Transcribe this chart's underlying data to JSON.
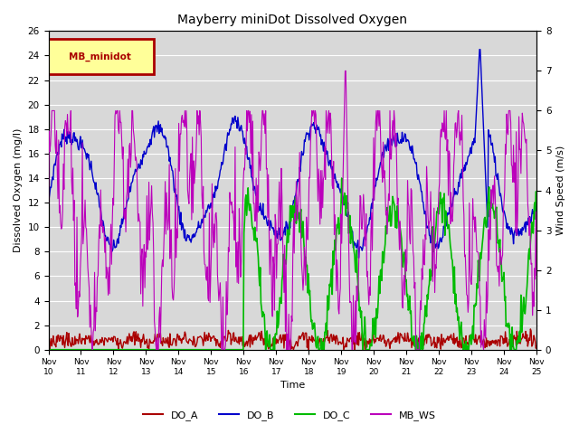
{
  "title": "Mayberry miniDot Dissolved Oxygen",
  "xlabel": "Time",
  "ylabel_left": "Dissolved Oxygen (mg/l)",
  "ylabel_right": "Wind Speed (m/s)",
  "ylim_left": [
    0,
    26
  ],
  "ylim_right": [
    0.0,
    8.0
  ],
  "yticks_left": [
    0,
    2,
    4,
    6,
    8,
    10,
    12,
    14,
    16,
    18,
    20,
    22,
    24,
    26
  ],
  "yticks_right": [
    0.0,
    1.0,
    2.0,
    3.0,
    4.0,
    5.0,
    6.0,
    7.0,
    8.0
  ],
  "xtick_labels": [
    "Nov 10",
    "Nov 11",
    "Nov 12",
    "Nov 13",
    "Nov 14",
    "Nov 15",
    "Nov 16",
    "Nov 17",
    "Nov 18",
    "Nov 19",
    "Nov 20",
    "Nov 21",
    "Nov 22",
    "Nov 23",
    "Nov 24",
    "Nov 25"
  ],
  "colors": {
    "DO_A": "#aa0000",
    "DO_B": "#0000cc",
    "DO_C": "#00bb00",
    "MB_WS": "#bb00bb"
  },
  "legend_label": "MB_minidot",
  "legend_box_facecolor": "#ffff99",
  "legend_box_edgecolor": "#aa0000",
  "plot_bg": "#d8d8d8",
  "fig_bg": "#ffffff"
}
